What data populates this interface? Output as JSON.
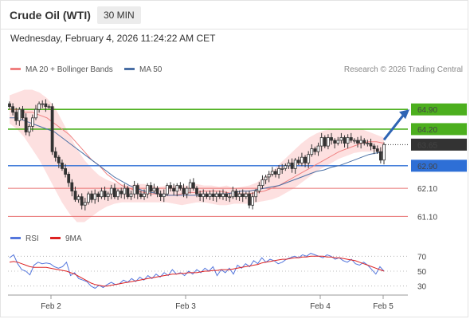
{
  "header": {
    "title": "Crude Oil (WTI)",
    "interval": "30 MIN",
    "datetime": "Wednesday, February 4, 2026 11:24:22 AM CET"
  },
  "credit": "Research © 2026 Trading Central",
  "colors": {
    "bollinger_band": "#fde0e0",
    "ma20": "#f08080",
    "ma50": "#4a6fa5",
    "candle": "#333333",
    "resistance": "#4caf1e",
    "support": "#2e6fd6",
    "minor_level": "#e87070",
    "arrow": "#2e64b4",
    "rsi": "#5577dd",
    "rsi_ma": "#dd2222",
    "price_tag": "#333333"
  },
  "chart_data": [
    {
      "type": "candlestick",
      "legend": [
        "MA 20 + Bollinger Bands",
        "MA 50"
      ],
      "x_ticks": [
        "Feb 2",
        "Feb 3",
        "Feb 4",
        "Feb 5"
      ],
      "ylim": [
        60.8,
        65.5
      ],
      "last_price": 63.65,
      "levels": [
        {
          "value": 64.9,
          "label": "64.90",
          "kind": "resistance"
        },
        {
          "value": 64.2,
          "label": "64.20",
          "kind": "resistance"
        },
        {
          "value": 62.9,
          "label": "62.90",
          "kind": "support"
        },
        {
          "value": 62.1,
          "label": "62.10",
          "kind": "minor"
        },
        {
          "value": 61.1,
          "label": "61.10",
          "kind": "minor"
        }
      ],
      "candle_closes": [
        65.0,
        64.8,
        64.5,
        64.9,
        64.6,
        64.1,
        64.3,
        64.6,
        64.9,
        65.1,
        65.1,
        65.0,
        65.0,
        63.4,
        63.2,
        63.0,
        62.8,
        62.6,
        62.3,
        62.0,
        61.7,
        61.8,
        61.5,
        61.6,
        61.9,
        61.7,
        61.9,
        61.8,
        62.0,
        61.8,
        61.9,
        62.1,
        61.8,
        62.0,
        61.9,
        62.1,
        61.8,
        61.9,
        62.2,
        61.9,
        61.8,
        61.9,
        62.2,
        62.0,
        62.1,
        61.9,
        61.8,
        61.9,
        62.2,
        62.1,
        62.0,
        62.2,
        62.1,
        61.9,
        62.1,
        62.3,
        62.1,
        61.9,
        61.8,
        61.9,
        61.8,
        61.9,
        61.8,
        61.9,
        61.8,
        61.9,
        61.8,
        61.8,
        62.0,
        61.8,
        61.9,
        61.8,
        61.9,
        61.5,
        61.8,
        62.0,
        62.2,
        62.4,
        62.5,
        62.6,
        62.7,
        62.6,
        62.8,
        62.8,
        62.9,
        63.0,
        62.8,
        63.1,
        63.0,
        63.2,
        63.0,
        63.3,
        63.5,
        63.4,
        63.6,
        63.9,
        63.6,
        63.9,
        63.8,
        63.7,
        63.8,
        63.9,
        63.7,
        63.9,
        63.8,
        63.8,
        63.7,
        63.8,
        63.7,
        63.7,
        63.6,
        63.5,
        63.4,
        63.1,
        63.65
      ],
      "ma20": [
        64.9,
        64.9,
        64.8,
        64.8,
        64.7,
        64.6,
        64.4,
        64.2,
        64.0,
        63.7,
        63.4,
        63.1,
        62.9,
        62.6,
        62.4,
        62.2,
        62.1,
        62.0,
        61.95,
        61.9,
        61.9,
        61.85,
        61.85,
        61.9,
        61.95,
        61.95,
        62.0,
        62.0,
        62.0,
        61.95,
        61.9,
        61.9,
        61.9,
        61.95,
        62.0,
        62.1,
        62.2,
        62.35,
        62.5,
        62.65,
        62.8,
        62.95,
        63.1,
        63.25,
        63.4,
        63.5,
        63.6,
        63.7,
        63.75,
        63.75,
        63.7
      ],
      "ma50": [
        64.6,
        64.6,
        64.5,
        64.4,
        64.3,
        64.2,
        64.1,
        63.9,
        63.7,
        63.5,
        63.3,
        63.1,
        62.9,
        62.7,
        62.5,
        62.35,
        62.2,
        62.1,
        62.0,
        61.95,
        61.9,
        61.85,
        61.85,
        61.85,
        61.85,
        61.85,
        61.85,
        61.85,
        61.9,
        61.9,
        61.95,
        62.0,
        62.0,
        62.05,
        62.1,
        62.15,
        62.2,
        62.3,
        62.4,
        62.5,
        62.6,
        62.7,
        62.75,
        62.85,
        62.9,
        63.0,
        63.1,
        63.2,
        63.3,
        63.35,
        63.4
      ],
      "bb_upper": [
        65.4,
        65.5,
        65.6,
        65.6,
        65.5,
        65.3,
        65.0,
        64.5,
        64.0,
        63.5,
        63.1,
        62.8,
        62.55,
        62.4,
        62.3,
        62.25,
        62.2,
        62.25,
        62.25,
        62.2,
        62.15,
        62.2,
        62.2,
        62.2,
        62.2,
        62.25,
        62.2,
        62.2,
        62.15,
        62.2,
        62.1,
        62.15,
        62.2,
        62.3,
        62.5,
        62.7,
        62.95,
        63.2,
        63.45,
        63.7,
        63.9,
        64.05,
        64.15,
        64.2,
        64.2,
        64.2,
        64.2,
        64.2,
        64.1,
        64.0,
        63.9
      ],
      "bb_lower": [
        64.4,
        64.2,
        63.9,
        63.5,
        63.1,
        62.6,
        62.1,
        61.6,
        61.2,
        60.9,
        60.9,
        61.1,
        61.3,
        61.45,
        61.55,
        61.6,
        61.6,
        61.6,
        61.6,
        61.6,
        61.6,
        61.6,
        61.55,
        61.5,
        61.55,
        61.6,
        61.6,
        61.55,
        61.5,
        61.5,
        61.55,
        61.55,
        61.55,
        61.6,
        61.65,
        61.7,
        61.8,
        61.95,
        62.1,
        62.3,
        62.5,
        62.7,
        62.85,
        63.0,
        63.15,
        63.25,
        63.35,
        63.4,
        63.4,
        63.4,
        63.3
      ]
    },
    {
      "type": "line",
      "legend": [
        "RSI",
        "9MA"
      ],
      "y_ticks": [
        70,
        50,
        30
      ],
      "ylim": [
        20,
        80
      ],
      "rsi": [
        68,
        72,
        60,
        52,
        50,
        45,
        58,
        62,
        60,
        61,
        60,
        56,
        54,
        56,
        62,
        44,
        48,
        40,
        38,
        36,
        30,
        27,
        31,
        28,
        32,
        35,
        32,
        33,
        38,
        35,
        40,
        36,
        42,
        38,
        44,
        40,
        46,
        42,
        48,
        44,
        52,
        46,
        48,
        44,
        50,
        46,
        52,
        48,
        54,
        50,
        56,
        44,
        52,
        48,
        54,
        46,
        58,
        54,
        60,
        56,
        64,
        60,
        68,
        62,
        66,
        64,
        60,
        62,
        66,
        68,
        70,
        68,
        72,
        70,
        74,
        72,
        70,
        68,
        72,
        70,
        66,
        68,
        64,
        62,
        66,
        60,
        58,
        62,
        58,
        52,
        46,
        56,
        50
      ],
      "rsi_ma": [
        62,
        63,
        62,
        60,
        58,
        56,
        55,
        55,
        55,
        55,
        54,
        53,
        52,
        51,
        50,
        48,
        46,
        43,
        40,
        37,
        34,
        32,
        31,
        30,
        30,
        31,
        32,
        33,
        34,
        35,
        36,
        37,
        38,
        39,
        40,
        41,
        42,
        43,
        44,
        45,
        46,
        46,
        47,
        47,
        48,
        48,
        48,
        49,
        50,
        50,
        51,
        51,
        52,
        52,
        52,
        53,
        54,
        55,
        56,
        57,
        58,
        59,
        61,
        62,
        63,
        64,
        65,
        66,
        66,
        67,
        68,
        68,
        69,
        69,
        70,
        70,
        70,
        70,
        69,
        69,
        68,
        68,
        67,
        66,
        65,
        64,
        62,
        60,
        58,
        56,
        54,
        52,
        50
      ]
    }
  ]
}
